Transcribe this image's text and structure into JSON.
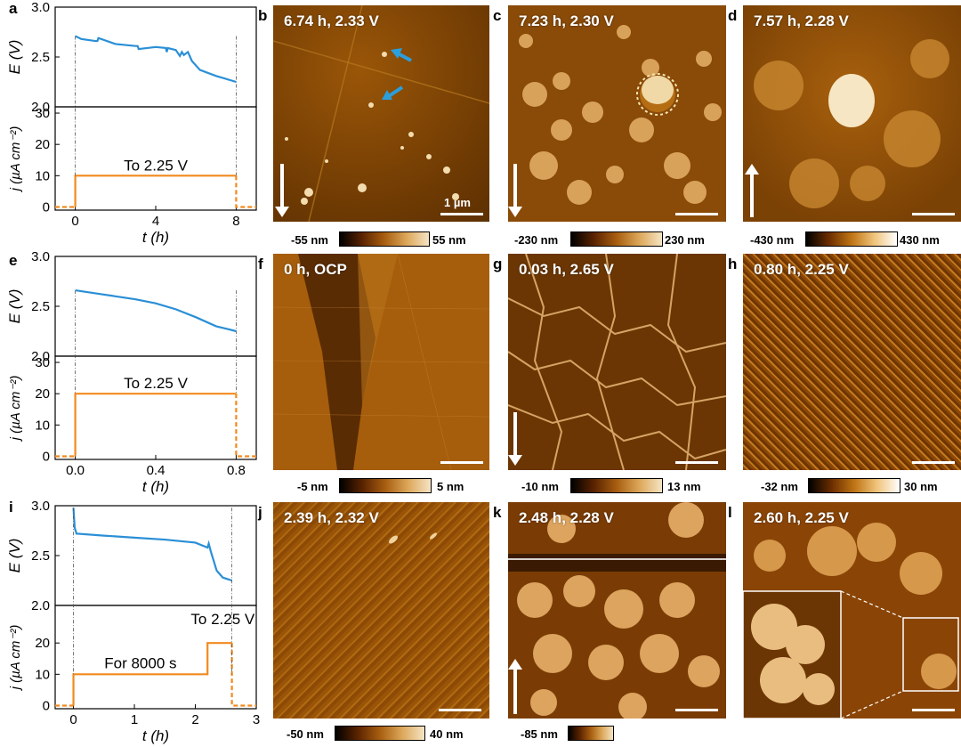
{
  "panel_labels": [
    "a",
    "b",
    "c",
    "d",
    "e",
    "f",
    "g",
    "h",
    "i",
    "j",
    "k",
    "l"
  ],
  "afm_panels": [
    {
      "id": "b",
      "title": "6.74 h, 2.33 V",
      "cmin": "-55 nm",
      "cmax": "55 nm",
      "scale_label": "1 µm"
    },
    {
      "id": "c",
      "title": "7.23 h, 2.30 V",
      "cmin": "-230 nm",
      "cmax": "230 nm"
    },
    {
      "id": "d",
      "title": "7.57 h, 2.28 V",
      "cmin": "-430 nm",
      "cmax": "430 nm"
    },
    {
      "id": "f",
      "title": "0 h, OCP",
      "cmin": "-5 nm",
      "cmax": "5 nm"
    },
    {
      "id": "g",
      "title": "0.03 h, 2.65 V",
      "cmin": "-10 nm",
      "cmax": "13 nm"
    },
    {
      "id": "h",
      "title": "0.80 h, 2.25 V",
      "cmin": "-32 nm",
      "cmax": "30 nm"
    },
    {
      "id": "j",
      "title": "2.39 h, 2.32 V",
      "cmin": "-50 nm",
      "cmax": "40 nm"
    },
    {
      "id": "k",
      "title": "2.48 h, 2.28 V",
      "cmin": "-85 nm",
      "cmax": ""
    },
    {
      "id": "l",
      "title": "2.60 h, 2.25 V",
      "cmin": "",
      "cmax": ""
    }
  ],
  "colors": {
    "voltage": "#2a8fd6",
    "current": "#f28a1e",
    "afm_mid": "#b5690f",
    "arrow": "#2a9fdc"
  },
  "chart_data": [
    {
      "id": "a",
      "type": "line",
      "top": {
        "ylabel": "E (V)",
        "ylim": [
          2.0,
          3.0
        ],
        "yticks": [
          "2.0",
          "2.5",
          "3.0"
        ],
        "series": [
          {
            "x": [
              0,
              0.3,
              1,
              1.1,
              1.15,
              2,
              3,
              3.1,
              3.15,
              4,
              4.5,
              4.55,
              4.6,
              5,
              5.2,
              5.3,
              5.4,
              5.6,
              5.8,
              6.2,
              7,
              8
            ],
            "y": [
              2.71,
              2.68,
              2.66,
              2.66,
              2.69,
              2.63,
              2.61,
              2.61,
              2.58,
              2.6,
              2.59,
              2.55,
              2.59,
              2.57,
              2.51,
              2.55,
              2.52,
              2.55,
              2.46,
              2.37,
              2.31,
              2.25
            ]
          }
        ]
      },
      "bottom": {
        "ylabel": "j (µA cm⁻²)",
        "ylim": [
          -1,
          32
        ],
        "yticks": [
          "0",
          "10",
          "20",
          "30"
        ],
        "series": [
          {
            "x": [
              -1,
              0,
              0,
              8,
              8,
              9
            ],
            "y": [
              0,
              0,
              10,
              10,
              0,
              0
            ]
          }
        ],
        "annotation": "To 2.25 V"
      },
      "xlabel": "t (h)",
      "xlim": [
        -1,
        9
      ],
      "xticks": [
        {
          "v": 0,
          "t": "0"
        },
        {
          "v": 4,
          "t": "4"
        },
        {
          "v": 8,
          "t": "8"
        }
      ]
    },
    {
      "id": "e",
      "type": "line",
      "top": {
        "ylabel": "E (V)",
        "ylim": [
          2.0,
          3.0
        ],
        "yticks": [
          "2.0",
          "2.5",
          "3.0"
        ],
        "series": [
          {
            "x": [
              0,
              0.1,
              0.2,
              0.3,
              0.4,
              0.5,
              0.6,
              0.7,
              0.8
            ],
            "y": [
              2.66,
              2.63,
              2.6,
              2.57,
              2.53,
              2.47,
              2.39,
              2.3,
              2.25
            ]
          }
        ]
      },
      "bottom": {
        "ylabel": "j (µA cm⁻²)",
        "ylim": [
          -1,
          32
        ],
        "yticks": [
          "0",
          "10",
          "20",
          "30"
        ],
        "series": [
          {
            "x": [
              -0.1,
              0,
              0,
              0.8,
              0.8,
              0.9
            ],
            "y": [
              0,
              0,
              20,
              20,
              0,
              0
            ]
          }
        ],
        "annotation": "To 2.25 V"
      },
      "xlabel": "t (h)",
      "xlim": [
        -0.1,
        0.9
      ],
      "xticks": [
        {
          "v": 0,
          "t": "0.0"
        },
        {
          "v": 0.4,
          "t": "0.4"
        },
        {
          "v": 0.8,
          "t": "0.8"
        }
      ]
    },
    {
      "id": "i",
      "type": "line",
      "top": {
        "ylabel": "E (V)",
        "ylim": [
          2.0,
          3.0
        ],
        "yticks": [
          "2.0",
          "2.5",
          "3.0"
        ],
        "series": [
          {
            "x": [
              0,
              0.02,
              0.05,
              0.5,
              1,
              1.5,
              2,
              2.2,
              2.22,
              2.25,
              2.3,
              2.35,
              2.45,
              2.6
            ],
            "y": [
              2.98,
              2.78,
              2.72,
              2.7,
              2.68,
              2.66,
              2.63,
              2.58,
              2.62,
              2.55,
              2.45,
              2.35,
              2.28,
              2.25
            ]
          }
        ]
      },
      "bottom": {
        "ylabel": "j (µA cm⁻²)",
        "ylim": [
          -1,
          32
        ],
        "yticks": [
          "0",
          "10",
          "20"
        ],
        "series": [
          {
            "x": [
              -0.3,
              0,
              0,
              2.2,
              2.2,
              2.6,
              2.6,
              3.0
            ],
            "y": [
              0,
              0,
              10,
              10,
              20,
              20,
              0,
              0
            ]
          }
        ],
        "annotations": [
          "For 8000 s",
          "To 2.25 V"
        ]
      },
      "xlabel": "t (h)",
      "xlim": [
        -0.3,
        3.0
      ],
      "xticks": [
        {
          "v": 0,
          "t": "0"
        },
        {
          "v": 1,
          "t": "1"
        },
        {
          "v": 2,
          "t": "2"
        },
        {
          "v": 3,
          "t": "3"
        }
      ]
    }
  ]
}
